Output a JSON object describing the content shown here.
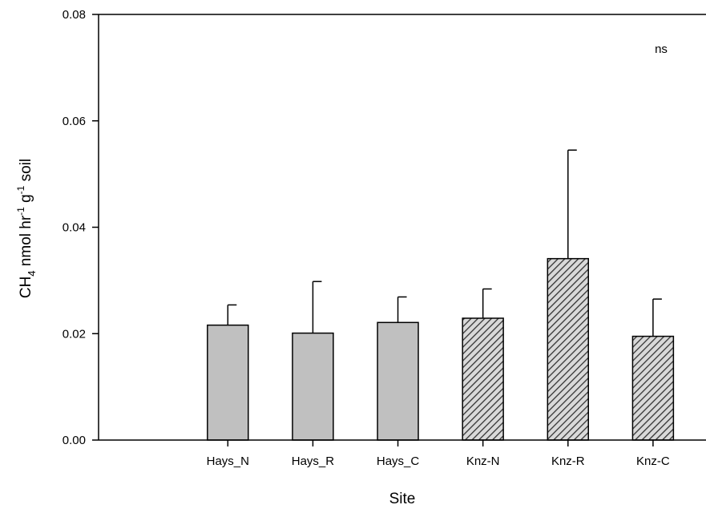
{
  "chart_data": {
    "type": "bar",
    "categories": [
      "Hays_N",
      "Hays_R",
      "Hays_C",
      "Knz-N",
      "Knz-R",
      "Knz-C"
    ],
    "values": [
      0.0216,
      0.0201,
      0.0221,
      0.0229,
      0.0341,
      0.0195
    ],
    "errors": [
      0.0038,
      0.0097,
      0.0048,
      0.0055,
      0.0204,
      0.007
    ],
    "fill_patterns": [
      "solid",
      "solid",
      "solid",
      "hatched",
      "hatched",
      "hatched"
    ],
    "colors": {
      "solid": "#c0c0c0",
      "hatch": "#333333",
      "hatch_bg": "#d9d9d9"
    },
    "title": "",
    "xlabel": "Site",
    "ylabel": {
      "main": "CH",
      "sub": "4",
      "rest1": " nmol hr",
      "sup1": "-1",
      "rest2": " g",
      "sup2": "-1",
      "rest3": " soil"
    },
    "ylim": [
      0,
      0.08
    ],
    "yticks": [
      "0.00",
      "0.02",
      "0.04",
      "0.06",
      "0.08"
    ],
    "ytick_values": [
      0,
      0.02,
      0.04,
      0.06,
      0.08
    ],
    "annotation": "ns",
    "grid": false,
    "legend": "none"
  }
}
